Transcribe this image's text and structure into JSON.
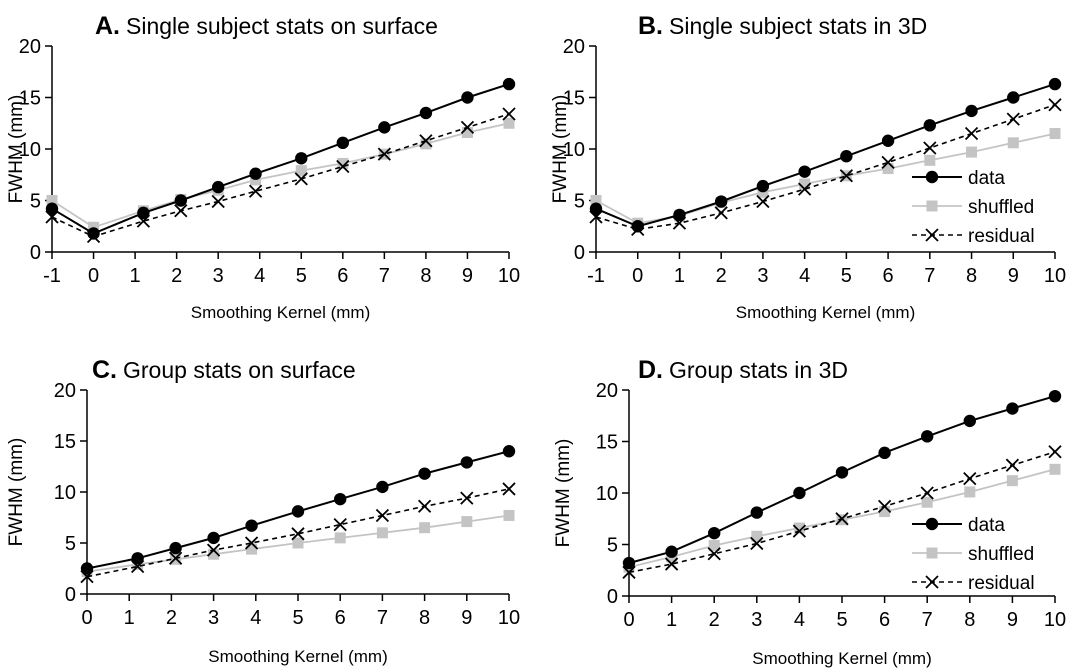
{
  "chart_data": [
    {
      "panel_id": "A",
      "type": "line",
      "title": "Single subject stats on surface",
      "xlabel": "Smoothing Kernel (mm)",
      "ylabel": "FWHM (mm)",
      "xlim": [
        -1,
        10
      ],
      "ylim": [
        0,
        20
      ],
      "xticks": [
        -1,
        0,
        1,
        2,
        3,
        4,
        5,
        6,
        7,
        8,
        9,
        10
      ],
      "yticks": [
        0,
        5,
        10,
        15,
        20
      ],
      "legend": null,
      "series": [
        {
          "name": "data",
          "style": "data",
          "x": [
            -1,
            0,
            1.2,
            2.1,
            3,
            3.9,
            5,
            6,
            7,
            8,
            9,
            10
          ],
          "y": [
            4.2,
            1.8,
            3.8,
            5,
            6.3,
            7.6,
            9.1,
            10.6,
            12.1,
            13.5,
            15,
            16.3
          ]
        },
        {
          "name": "shuffled",
          "style": "shuffled",
          "x": [
            -1,
            0,
            1.2,
            2.1,
            3,
            3.9,
            5,
            6,
            7,
            8,
            9,
            10
          ],
          "y": [
            5,
            2.4,
            4,
            5.1,
            6,
            7,
            7.9,
            8.6,
            9.5,
            10.5,
            11.6,
            12.5
          ]
        },
        {
          "name": "residual",
          "style": "residual",
          "x": [
            -1,
            0,
            1.2,
            2.1,
            3,
            3.9,
            5,
            6,
            7,
            8,
            9,
            10
          ],
          "y": [
            3.4,
            1.5,
            3,
            4,
            4.9,
            5.9,
            7.1,
            8.3,
            9.5,
            10.8,
            12.1,
            13.4
          ]
        }
      ]
    },
    {
      "panel_id": "B",
      "type": "line",
      "title": "Single subject stats in 3D",
      "xlabel": "Smoothing Kernel (mm)",
      "ylabel": "FWHM (mm)",
      "xlim": [
        -1,
        10
      ],
      "ylim": [
        0,
        20
      ],
      "xticks": [
        -1,
        0,
        1,
        2,
        3,
        4,
        5,
        6,
        7,
        8,
        9,
        10
      ],
      "yticks": [
        0,
        5,
        10,
        15,
        20
      ],
      "legend": "bottom-right",
      "series": [
        {
          "name": "data",
          "style": "data",
          "x": [
            -1,
            0,
            1,
            2,
            3,
            4,
            5,
            6,
            7,
            8,
            9,
            10
          ],
          "y": [
            4.2,
            2.5,
            3.6,
            4.9,
            6.4,
            7.8,
            9.3,
            10.8,
            12.3,
            13.7,
            15,
            16.3
          ]
        },
        {
          "name": "shuffled",
          "style": "shuffled",
          "x": [
            -1,
            0,
            1,
            2,
            3,
            4,
            5,
            6,
            7,
            8,
            9,
            10
          ],
          "y": [
            5,
            2.8,
            3.5,
            4.8,
            5.8,
            6.6,
            7.4,
            8.1,
            8.9,
            9.7,
            10.6,
            11.5
          ]
        },
        {
          "name": "residual",
          "style": "residual",
          "x": [
            -1,
            0,
            1,
            2,
            3,
            4,
            5,
            6,
            7,
            8,
            9,
            10
          ],
          "y": [
            3.4,
            2.2,
            2.8,
            3.8,
            4.9,
            6.1,
            7.4,
            8.7,
            10.1,
            11.5,
            12.9,
            14.3
          ]
        }
      ]
    },
    {
      "panel_id": "C",
      "type": "line",
      "title": "Group stats on surface",
      "xlabel": "Smoothing Kernel (mm)",
      "ylabel": "FWHM (mm)",
      "xlim": [
        0,
        10
      ],
      "ylim": [
        0,
        20
      ],
      "xticks": [
        0,
        1,
        2,
        3,
        4,
        5,
        6,
        7,
        8,
        9,
        10
      ],
      "yticks": [
        0,
        5,
        10,
        15,
        20
      ],
      "legend": null,
      "series": [
        {
          "name": "data",
          "style": "data",
          "x": [
            0,
            1.2,
            2.1,
            3,
            3.9,
            5,
            6,
            7,
            8,
            9,
            10
          ],
          "y": [
            2.5,
            3.5,
            4.5,
            5.5,
            6.7,
            8.1,
            9.3,
            10.5,
            11.8,
            12.9,
            14
          ]
        },
        {
          "name": "shuffled",
          "style": "shuffled",
          "x": [
            0,
            1.2,
            2.1,
            3,
            3.9,
            5,
            6,
            7,
            8,
            9,
            10
          ],
          "y": [
            2.2,
            2.9,
            3.4,
            3.9,
            4.4,
            5,
            5.5,
            6,
            6.5,
            7.1,
            7.7
          ]
        },
        {
          "name": "residual",
          "style": "residual",
          "x": [
            0,
            1.2,
            2.1,
            3,
            3.9,
            5,
            6,
            7,
            8,
            9,
            10
          ],
          "y": [
            1.7,
            2.7,
            3.5,
            4.3,
            5,
            5.9,
            6.8,
            7.7,
            8.6,
            9.4,
            10.3
          ]
        }
      ]
    },
    {
      "panel_id": "D",
      "type": "line",
      "title": "Group stats in 3D",
      "xlabel": "Smoothing Kernel (mm)",
      "ylabel": "FWHM (mm)",
      "xlim": [
        0,
        10
      ],
      "ylim": [
        0,
        20
      ],
      "xticks": [
        0,
        1,
        2,
        3,
        4,
        5,
        6,
        7,
        8,
        9,
        10
      ],
      "yticks": [
        0,
        5,
        10,
        15,
        20
      ],
      "legend": "bottom-right",
      "series": [
        {
          "name": "data",
          "style": "data",
          "x": [
            0,
            1,
            2,
            3,
            4,
            5,
            6,
            7,
            8,
            9,
            10
          ],
          "y": [
            3.2,
            4.3,
            6.1,
            8.1,
            10,
            12,
            13.9,
            15.5,
            17,
            18.2,
            19.4
          ]
        },
        {
          "name": "shuffled",
          "style": "shuffled",
          "x": [
            0,
            1,
            2,
            3,
            4,
            5,
            6,
            7,
            8,
            9,
            10
          ],
          "y": [
            2.8,
            3.8,
            4.9,
            5.8,
            6.6,
            7.4,
            8.2,
            9.1,
            10.1,
            11.2,
            12.3
          ]
        },
        {
          "name": "residual",
          "style": "residual",
          "x": [
            0,
            1,
            2,
            3,
            4,
            5,
            6,
            7,
            8,
            9,
            10
          ],
          "y": [
            2.3,
            3.1,
            4.1,
            5.1,
            6.3,
            7.5,
            8.7,
            10,
            11.4,
            12.7,
            14
          ]
        }
      ]
    }
  ],
  "colors": {
    "data": "#000000",
    "shuffled": "#c4c4c4",
    "residual": "#000000",
    "axis": "#000000"
  }
}
